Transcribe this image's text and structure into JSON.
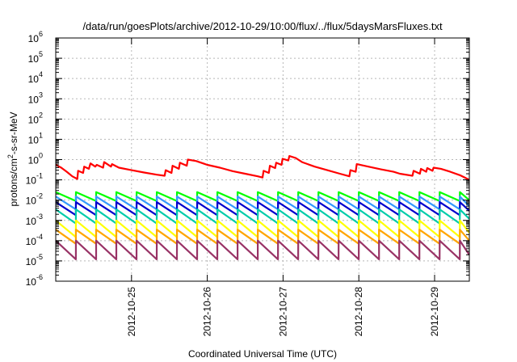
{
  "chart_data": {
    "type": "line",
    "title": "/data/run/goesPlots/archive/2012-10-29/10:00/flux/../flux/5daysMarsFluxes.txt",
    "xlabel": "Coordinated Universal Time (UTC)",
    "ylabel": "protons/cm²-s-sr-MeV",
    "ylabel_parts": {
      "before": "protons/cm",
      "sup": "2",
      "after": "-s-sr-MeV"
    },
    "y_scale": "log",
    "ylim": [
      1e-06,
      1000000.0
    ],
    "y_ticks": [
      {
        "value": 1e-06,
        "base": "10",
        "exp": "-6"
      },
      {
        "value": 1e-05,
        "base": "10",
        "exp": "-5"
      },
      {
        "value": 0.0001,
        "base": "10",
        "exp": "-4"
      },
      {
        "value": 0.001,
        "base": "10",
        "exp": "-3"
      },
      {
        "value": 0.01,
        "base": "10",
        "exp": "-2"
      },
      {
        "value": 0.1,
        "base": "10",
        "exp": "-1"
      },
      {
        "value": 1.0,
        "base": "10",
        "exp": "0"
      },
      {
        "value": 10.0,
        "base": "10",
        "exp": "1"
      },
      {
        "value": 100.0,
        "base": "10",
        "exp": "2"
      },
      {
        "value": 1000.0,
        "base": "10",
        "exp": "3"
      },
      {
        "value": 10000.0,
        "base": "10",
        "exp": "4"
      },
      {
        "value": 100000.0,
        "base": "10",
        "exp": "5"
      },
      {
        "value": 1000000.0,
        "base": "10",
        "exp": "6"
      }
    ],
    "xlim": [
      "2012-10-24 00:00",
      "2012-10-29 11:00"
    ],
    "x_ticks": [
      "2012-10-25",
      "2012-10-26",
      "2012-10-27",
      "2012-10-28",
      "2012-10-29"
    ],
    "grid": true,
    "legend": "none",
    "series": [
      {
        "color": "#ff0000",
        "points": [
          [
            "2012-10-24 00:00",
            0.55
          ],
          [
            "2012-10-24 01:45",
            0.4
          ],
          [
            "2012-10-24 03:30",
            0.25
          ],
          [
            "2012-10-24 05:15",
            0.15
          ],
          [
            "2012-10-24 06:50",
            0.11
          ],
          [
            "2012-10-24 07:05",
            0.28
          ],
          [
            "2012-10-24 08:40",
            0.22
          ],
          [
            "2012-10-24 09:00",
            0.45
          ],
          [
            "2012-10-24 10:30",
            0.35
          ],
          [
            "2012-10-24 11:00",
            0.65
          ],
          [
            "2012-10-24 12:30",
            0.45
          ],
          [
            "2012-10-24 13:00",
            0.55
          ],
          [
            "2012-10-24 15:00",
            0.4
          ],
          [
            "2012-10-24 15:20",
            0.75
          ],
          [
            "2012-10-24 17:30",
            0.45
          ],
          [
            "2012-10-24 17:50",
            0.6
          ],
          [
            "2012-10-24 20:00",
            0.4
          ],
          [
            "2012-10-25 00:00",
            0.3
          ],
          [
            "2012-10-25 04:00",
            0.23
          ],
          [
            "2012-10-25 08:00",
            0.18
          ],
          [
            "2012-10-25 10:30",
            0.16
          ],
          [
            "2012-10-25 10:50",
            0.3
          ],
          [
            "2012-10-25 12:40",
            0.22
          ],
          [
            "2012-10-25 13:00",
            0.5
          ],
          [
            "2012-10-25 15:00",
            0.35
          ],
          [
            "2012-10-25 15:20",
            0.7
          ],
          [
            "2012-10-25 17:30",
            0.5
          ],
          [
            "2012-10-25 17:50",
            1.0
          ],
          [
            "2012-10-25 20:30",
            0.85
          ],
          [
            "2012-10-26 00:00",
            0.55
          ],
          [
            "2012-10-26 04:00",
            0.4
          ],
          [
            "2012-10-26 08:00",
            0.27
          ],
          [
            "2012-10-26 12:00",
            0.2
          ],
          [
            "2012-10-26 16:00",
            0.15
          ],
          [
            "2012-10-26 17:30",
            0.13
          ],
          [
            "2012-10-26 17:50",
            0.28
          ],
          [
            "2012-10-26 19:30",
            0.22
          ],
          [
            "2012-10-26 19:50",
            0.5
          ],
          [
            "2012-10-26 21:30",
            0.38
          ],
          [
            "2012-10-26 21:50",
            0.7
          ],
          [
            "2012-10-26 23:30",
            0.55
          ],
          [
            "2012-10-26 23:50",
            1.1
          ],
          [
            "2012-10-27 01:40",
            0.9
          ],
          [
            "2012-10-27 02:00",
            1.5
          ],
          [
            "2012-10-27 04:00",
            1.2
          ],
          [
            "2012-10-27 06:00",
            0.75
          ],
          [
            "2012-10-27 10:00",
            0.45
          ],
          [
            "2012-10-27 14:00",
            0.3
          ],
          [
            "2012-10-27 18:00",
            0.2
          ],
          [
            "2012-10-27 21:00",
            0.15
          ],
          [
            "2012-10-27 21:20",
            0.3
          ],
          [
            "2012-10-27 23:00",
            0.25
          ],
          [
            "2012-10-27 23:20",
            0.6
          ],
          [
            "2012-10-28 03:00",
            0.45
          ],
          [
            "2012-10-28 07:00",
            0.33
          ],
          [
            "2012-10-28 11:00",
            0.25
          ],
          [
            "2012-10-28 13:00",
            0.2
          ],
          [
            "2012-10-28 17:00",
            0.16
          ],
          [
            "2012-10-28 17:20",
            0.28
          ],
          [
            "2012-10-28 19:20",
            0.2
          ],
          [
            "2012-10-28 19:40",
            0.35
          ],
          [
            "2012-10-28 21:20",
            0.25
          ],
          [
            "2012-10-28 21:40",
            0.38
          ],
          [
            "2012-10-28 23:20",
            0.28
          ],
          [
            "2012-10-28 23:40",
            0.4
          ],
          [
            "2012-10-29 02:00",
            0.35
          ],
          [
            "2012-10-29 05:00",
            0.25
          ],
          [
            "2012-10-29 08:00",
            0.17
          ],
          [
            "2012-10-29 10:00",
            0.12
          ],
          [
            "2012-10-29 11:00",
            0.1
          ]
        ]
      },
      {
        "color": "#00ff00",
        "cycle_hours": 6.4,
        "peak": 0.025,
        "trough": 0.009,
        "end": 0.01
      },
      {
        "color": "#3399ff",
        "cycle_hours": 6.4,
        "peak": 0.015,
        "trough": 0.0035,
        "end": 0.005
      },
      {
        "color": "#0000cc",
        "cycle_hours": 6.4,
        "peak": 0.008,
        "trough": 0.0018,
        "end": 0.003
      },
      {
        "color": "#00ccaa",
        "cycle_hours": 6.4,
        "peak": 0.0035,
        "trough": 0.0007,
        "end": 0.0012
      },
      {
        "color": "#ffff00",
        "cycle_hours": 6.4,
        "peak": 0.001,
        "trough": 0.00015,
        "end": 0.00025
      },
      {
        "color": "#ffa500",
        "cycle_hours": 6.4,
        "peak": 0.00035,
        "trough": 7e-05,
        "end": 0.0001
      },
      {
        "color": "#993366",
        "cycle_hours": 6.4,
        "peak": 0.0001,
        "trough": 1.2e-05,
        "end": 2e-05
      }
    ]
  }
}
